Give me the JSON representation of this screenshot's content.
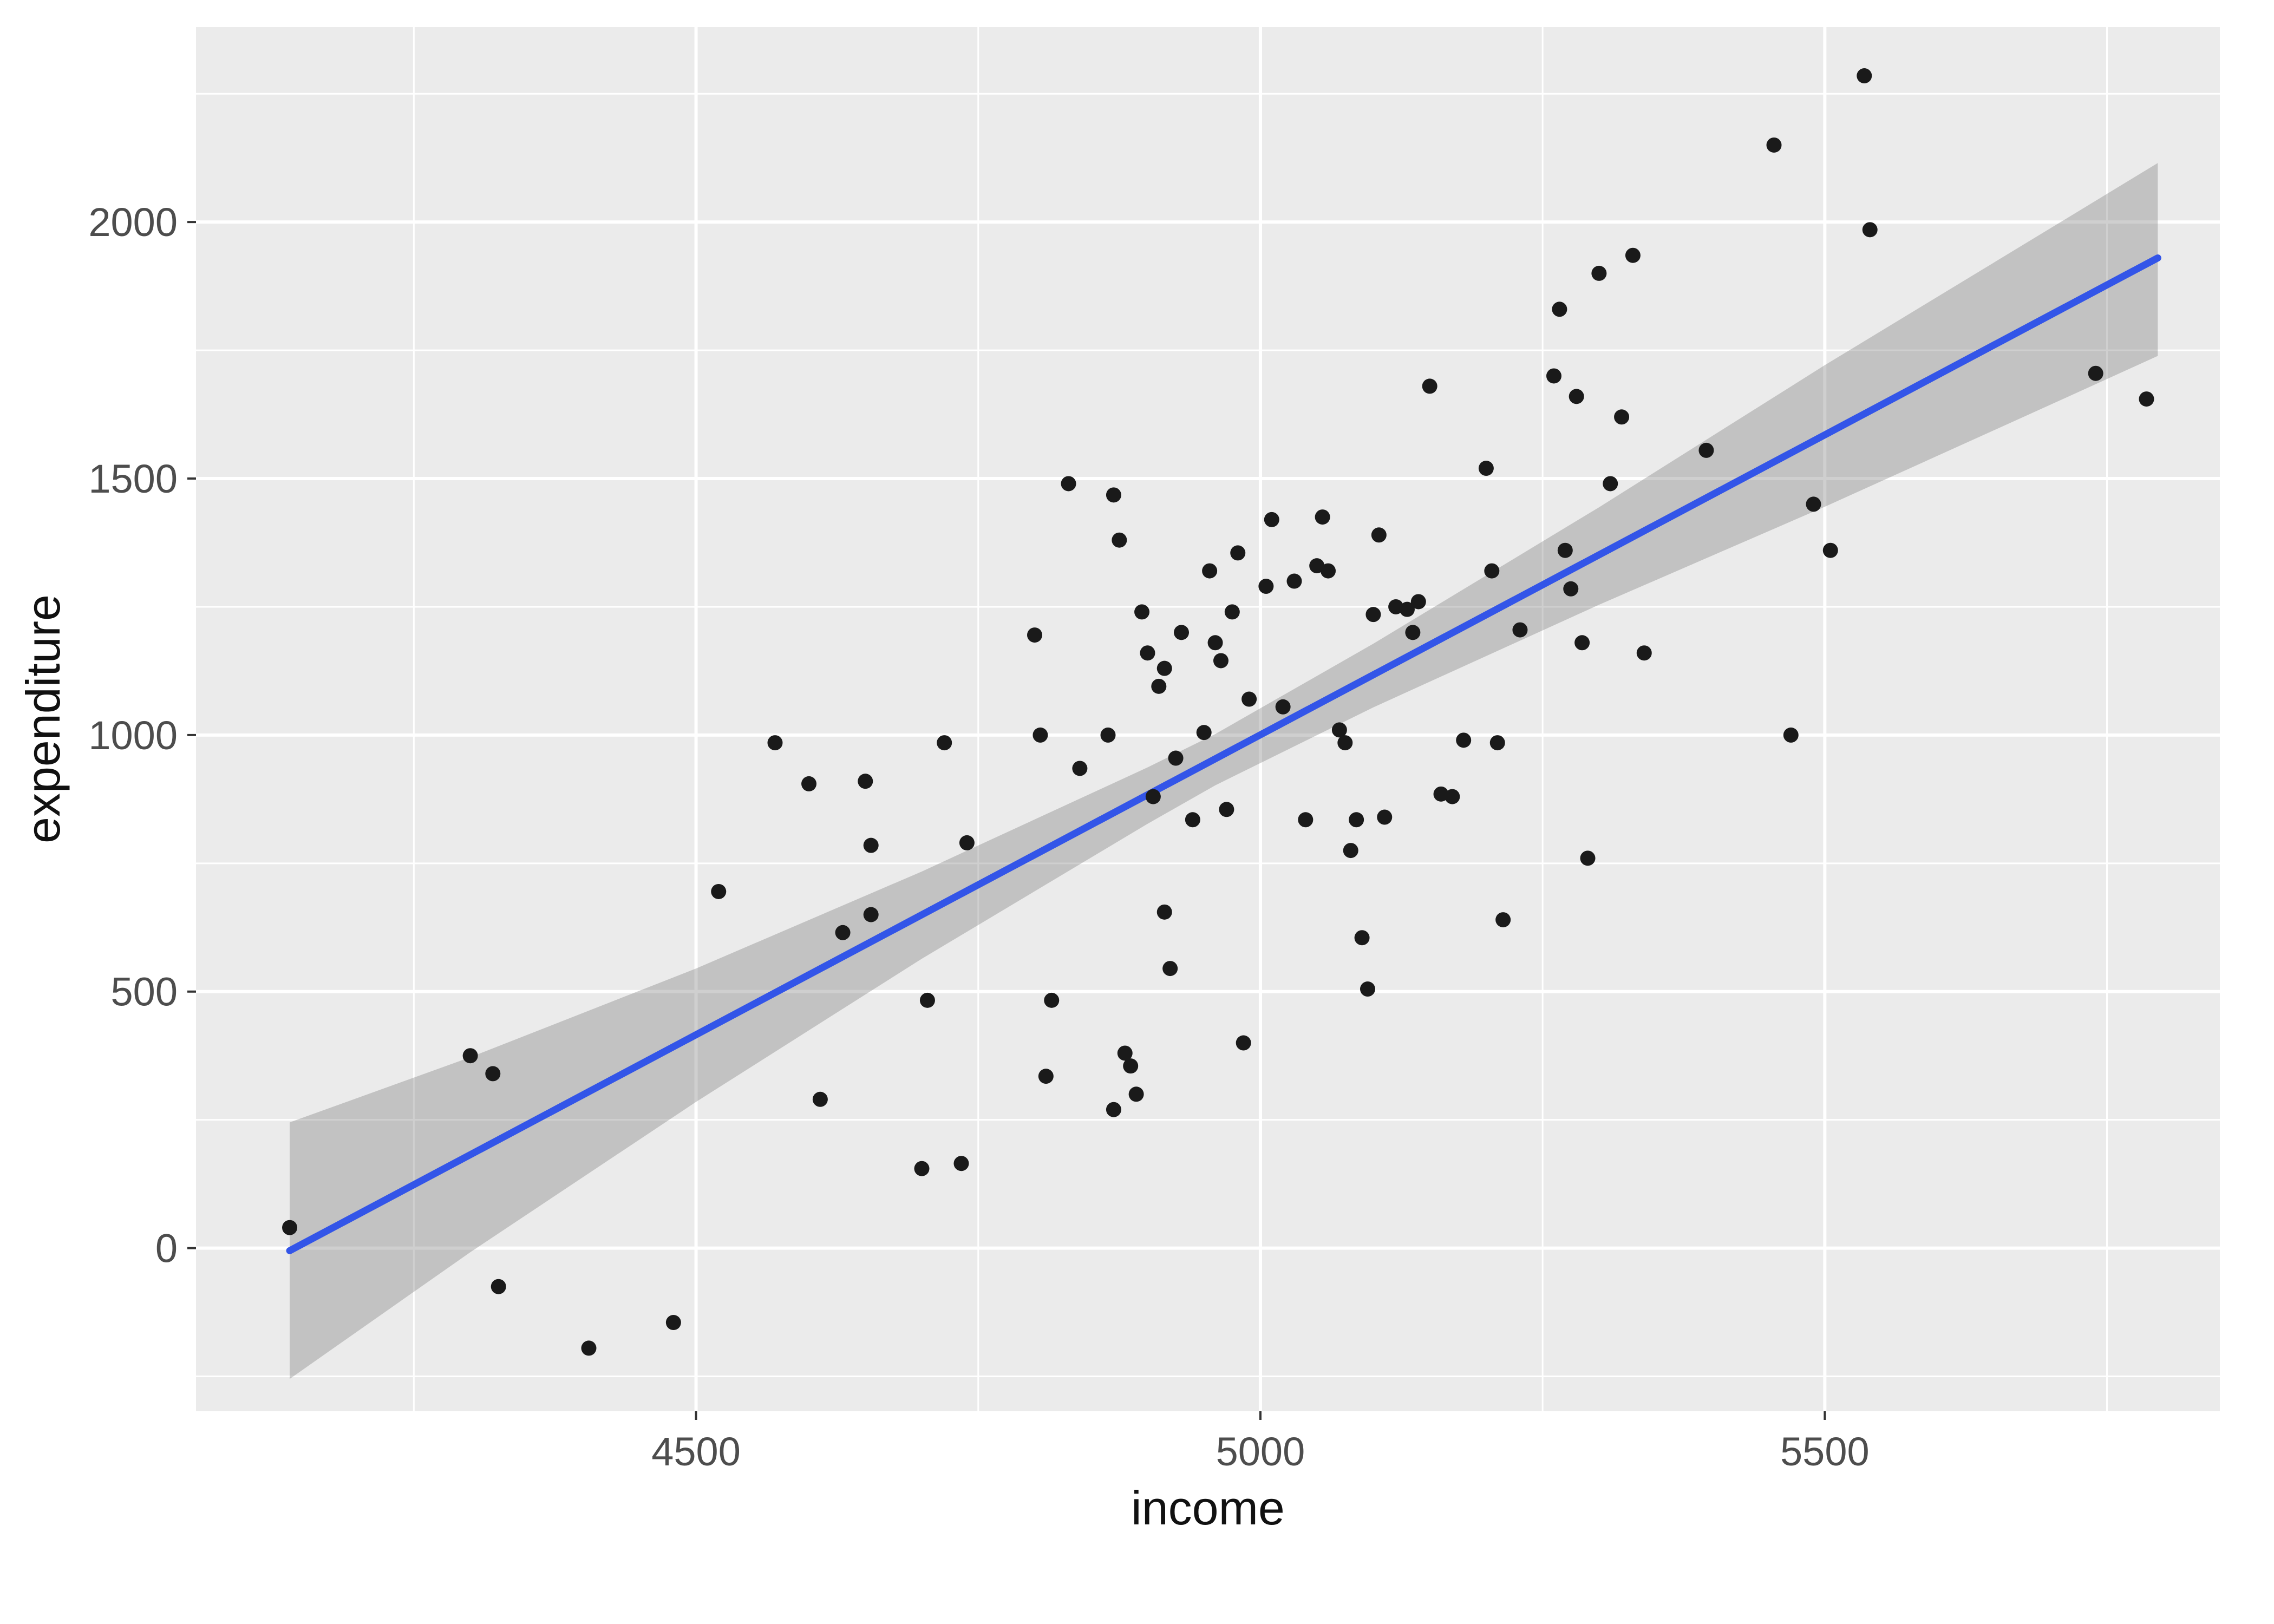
{
  "chart_data": {
    "type": "scatter",
    "title": "",
    "xlabel": "income",
    "ylabel": "expenditure",
    "xlim": [
      4057,
      5850
    ],
    "ylim": [
      -318,
      2380
    ],
    "x_ticks": [
      4500,
      5000,
      5500
    ],
    "x_minor_ticks": [
      4250,
      4750,
      5250,
      5750
    ],
    "y_ticks": [
      0,
      500,
      1000,
      1500,
      2000
    ],
    "y_minor_ticks": [
      -250,
      250,
      750,
      1250,
      1750,
      2250
    ],
    "grid": true,
    "legend": "none",
    "points": [
      [
        4140,
        40
      ],
      [
        4300,
        375
      ],
      [
        4320,
        340
      ],
      [
        4325,
        -75
      ],
      [
        4405,
        -195
      ],
      [
        4480,
        -145
      ],
      [
        4520,
        695
      ],
      [
        4570,
        985
      ],
      [
        4600,
        905
      ],
      [
        4610,
        290
      ],
      [
        4630,
        615
      ],
      [
        4650,
        910
      ],
      [
        4655,
        650
      ],
      [
        4655,
        785
      ],
      [
        4700,
        155
      ],
      [
        4705,
        483
      ],
      [
        4720,
        985
      ],
      [
        4735,
        165
      ],
      [
        4740,
        790
      ],
      [
        4800,
        1195
      ],
      [
        4805,
        1000
      ],
      [
        4810,
        335
      ],
      [
        4815,
        483
      ],
      [
        4830,
        1490
      ],
      [
        4840,
        935
      ],
      [
        4865,
        1000
      ],
      [
        4870,
        1468
      ],
      [
        4875,
        1380
      ],
      [
        4870,
        270
      ],
      [
        4880,
        380
      ],
      [
        4885,
        355
      ],
      [
        4890,
        300
      ],
      [
        4895,
        1240
      ],
      [
        4900,
        1160
      ],
      [
        4905,
        880
      ],
      [
        4910,
        1095
      ],
      [
        4915,
        1130
      ],
      [
        4915,
        655
      ],
      [
        4920,
        545
      ],
      [
        4925,
        955
      ],
      [
        4930,
        1200
      ],
      [
        4940,
        835
      ],
      [
        4950,
        1005
      ],
      [
        4955,
        1320
      ],
      [
        4960,
        1180
      ],
      [
        4965,
        1145
      ],
      [
        4970,
        855
      ],
      [
        4975,
        1240
      ],
      [
        4980,
        1355
      ],
      [
        4985,
        400
      ],
      [
        4990,
        1070
      ],
      [
        5005,
        1290
      ],
      [
        5010,
        1420
      ],
      [
        5020,
        1055
      ],
      [
        5030,
        1300
      ],
      [
        5040,
        835
      ],
      [
        5050,
        1330
      ],
      [
        5055,
        1425
      ],
      [
        5060,
        1320
      ],
      [
        5070,
        1010
      ],
      [
        5075,
        985
      ],
      [
        5080,
        775
      ],
      [
        5085,
        835
      ],
      [
        5090,
        605
      ],
      [
        5095,
        505
      ],
      [
        5100,
        1235
      ],
      [
        5105,
        1390
      ],
      [
        5110,
        840
      ],
      [
        5120,
        1250
      ],
      [
        5130,
        1245
      ],
      [
        5135,
        1200
      ],
      [
        5140,
        1260
      ],
      [
        5150,
        1680
      ],
      [
        5160,
        885
      ],
      [
        5170,
        880
      ],
      [
        5180,
        990
      ],
      [
        5200,
        1520
      ],
      [
        5205,
        1320
      ],
      [
        5210,
        985
      ],
      [
        5215,
        640
      ],
      [
        5230,
        1205
      ],
      [
        5260,
        1700
      ],
      [
        5265,
        1830
      ],
      [
        5270,
        1360
      ],
      [
        5275,
        1285
      ],
      [
        5280,
        1660
      ],
      [
        5285,
        1180
      ],
      [
        5290,
        760
      ],
      [
        5300,
        1900
      ],
      [
        5310,
        1490
      ],
      [
        5320,
        1620
      ],
      [
        5330,
        1935
      ],
      [
        5340,
        1160
      ],
      [
        5395,
        1555
      ],
      [
        5455,
        2150
      ],
      [
        5470,
        1000
      ],
      [
        5490,
        1450
      ],
      [
        5505,
        1360
      ],
      [
        5535,
        2285
      ],
      [
        5540,
        1985
      ],
      [
        5740,
        1705
      ],
      [
        5785,
        1655
      ]
    ],
    "trend_line": {
      "type": "linear",
      "x": [
        4140,
        5795
      ],
      "y": [
        -5,
        1930
      ]
    },
    "confidence_band": {
      "x": [
        4140,
        4300,
        4500,
        4700,
        4900,
        4960,
        5100,
        5300,
        5500,
        5700,
        5795
      ],
      "upper": [
        245,
        372,
        545,
        734,
        937,
        1002,
        1178,
        1444,
        1721,
        1988,
        2115
      ],
      "lower": [
        -255,
        -8,
        285,
        564,
        827,
        902,
        1054,
        1254,
        1445,
        1644,
        1739
      ]
    },
    "style": {
      "outer_background": "#FFFFFF",
      "panel_background": "#EBEBEB",
      "grid_color": "#FFFFFF",
      "point_color": "#1A1A1A",
      "line_color": "#3355E8",
      "band_color": "#808080",
      "band_opacity": 0.38,
      "tick_mark_color": "#333333",
      "tick_label_color": "#4D4D4D",
      "axis_title_color": "#111111"
    }
  }
}
